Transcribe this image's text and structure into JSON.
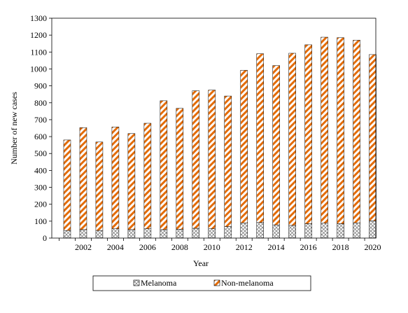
{
  "chart_data": {
    "type": "bar",
    "stacked": true,
    "xlabel": "Year",
    "ylabel": "Number of new cases",
    "ylim": [
      0,
      1300
    ],
    "yticks": [
      0,
      100,
      200,
      300,
      400,
      500,
      600,
      700,
      800,
      900,
      1000,
      1100,
      1200,
      1300
    ],
    "categories": [
      "2001",
      "2002",
      "2003",
      "2004",
      "2005",
      "2006",
      "2007",
      "2008",
      "2009",
      "2010",
      "2011",
      "2012",
      "2013",
      "2014",
      "2015",
      "2016",
      "2017",
      "2018",
      "2019",
      "2020"
    ],
    "xtick_labels": [
      "2002",
      "2004",
      "2006",
      "2008",
      "2010",
      "2012",
      "2014",
      "2016",
      "2018",
      "2020"
    ],
    "legend_position": "bottom",
    "grid": false,
    "series": [
      {
        "name": "Melanoma",
        "pattern": "crosshatch",
        "color": "#808080",
        "values": [
          45,
          50,
          45,
          55,
          50,
          55,
          50,
          52,
          58,
          55,
          68,
          90,
          92,
          78,
          75,
          85,
          88,
          85,
          90,
          102
        ]
      },
      {
        "name": "Non-melanoma",
        "pattern": "diagonal-stripes",
        "color": "#e36c09",
        "values": [
          535,
          603,
          523,
          602,
          568,
          624,
          762,
          715,
          813,
          820,
          772,
          902,
          998,
          942,
          1018,
          1058,
          1100,
          1100,
          1080,
          983
        ]
      }
    ]
  }
}
